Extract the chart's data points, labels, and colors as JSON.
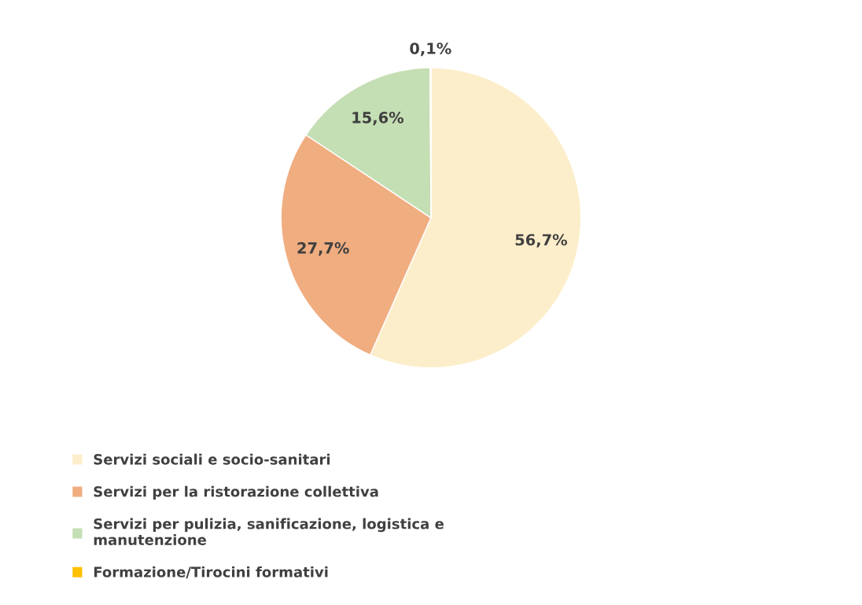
{
  "chart_data": {
    "type": "pie",
    "categories": [
      "Servizi sociali e socio-sanitari",
      "Servizi per la ristorazione collettiva",
      "Servizi per pulizia, sanificazione, logistica e\nmanutenzione",
      "Formazione/Tirocini formativi"
    ],
    "values": [
      56.7,
      27.7,
      15.6,
      0.1
    ],
    "value_labels": [
      "56,7%",
      "27,7%",
      "15,6%",
      "0,1%"
    ],
    "colors": [
      "#fdeecb",
      "#f0ad80",
      "#c5dfb4",
      "#ffc000"
    ],
    "legend": "bottom left"
  }
}
